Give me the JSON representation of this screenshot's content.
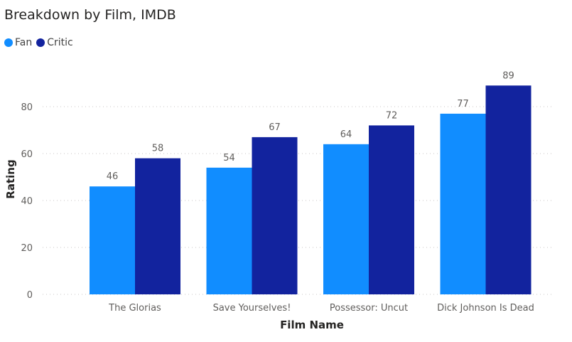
{
  "chart_data": {
    "type": "bar",
    "title": "Breakdown by Film, IMDB",
    "xlabel": "Film Name",
    "ylabel": "Rating",
    "categories": [
      "The Glorias",
      "Save Yourselves!",
      "Possessor: Uncut",
      "Dick Johnson Is Dead"
    ],
    "series": [
      {
        "name": "Fan",
        "values": [
          46,
          54,
          64,
          77
        ],
        "color": "#118DFF"
      },
      {
        "name": "Critic",
        "values": [
          58,
          67,
          72,
          89
        ],
        "color": "#12239E"
      }
    ],
    "ylim": [
      0,
      90
    ],
    "yticks": [
      0,
      20,
      40,
      60,
      80
    ],
    "grid": true,
    "legend": "top-left"
  }
}
